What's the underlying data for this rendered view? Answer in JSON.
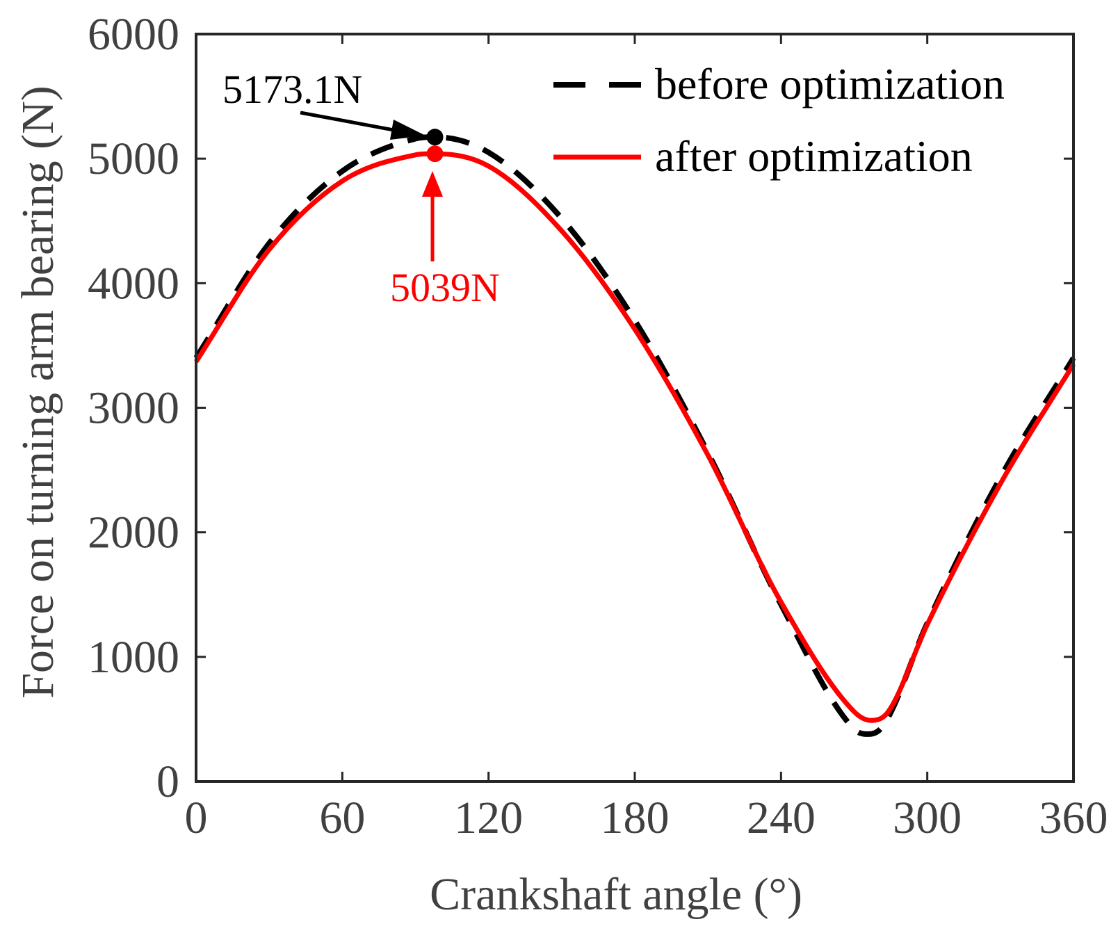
{
  "chart_data": {
    "type": "line",
    "title": "",
    "xlabel": "Crankshaft angle (°)",
    "ylabel": "Force on turning arm bearing (N)",
    "xlim": [
      0,
      360
    ],
    "ylim": [
      0,
      6000
    ],
    "xticks": [
      0,
      60,
      120,
      180,
      240,
      300,
      360
    ],
    "yticks": [
      0,
      1000,
      2000,
      3000,
      4000,
      5000,
      6000
    ],
    "xtick_labels": [
      "0",
      "60",
      "120",
      "180",
      "240",
      "300",
      "360"
    ],
    "ytick_labels": [
      "0",
      "1000",
      "2000",
      "3000",
      "4000",
      "5000",
      "6000"
    ],
    "grid": false,
    "legend_position": "top-right",
    "series": [
      {
        "name": "before optimization",
        "style": "dashed",
        "color": "#000000",
        "x": [
          0,
          30,
          60,
          90,
          98,
          120,
          150,
          180,
          210,
          240,
          270,
          276,
          282,
          300,
          330,
          360
        ],
        "y": [
          3400,
          4320,
          4900,
          5160,
          5173.1,
          5050,
          4520,
          3700,
          2640,
          1420,
          420,
          380,
          450,
          1270,
          2440,
          3400
        ]
      },
      {
        "name": "after optimization",
        "style": "solid",
        "color": "#ff0000",
        "x": [
          0,
          30,
          60,
          90,
          98,
          120,
          150,
          180,
          210,
          240,
          270,
          277,
          284,
          300,
          330,
          360
        ],
        "y": [
          3370,
          4270,
          4820,
          5030,
          5039,
          4940,
          4420,
          3630,
          2620,
          1440,
          560,
          490,
          560,
          1260,
          2390,
          3350
        ]
      }
    ],
    "annotations": [
      {
        "text": "5173.1N",
        "x": 98,
        "y": 5173.1,
        "color": "#000000"
      },
      {
        "text": "5039N",
        "x": 98,
        "y": 5039,
        "color": "#ff0000"
      }
    ]
  }
}
